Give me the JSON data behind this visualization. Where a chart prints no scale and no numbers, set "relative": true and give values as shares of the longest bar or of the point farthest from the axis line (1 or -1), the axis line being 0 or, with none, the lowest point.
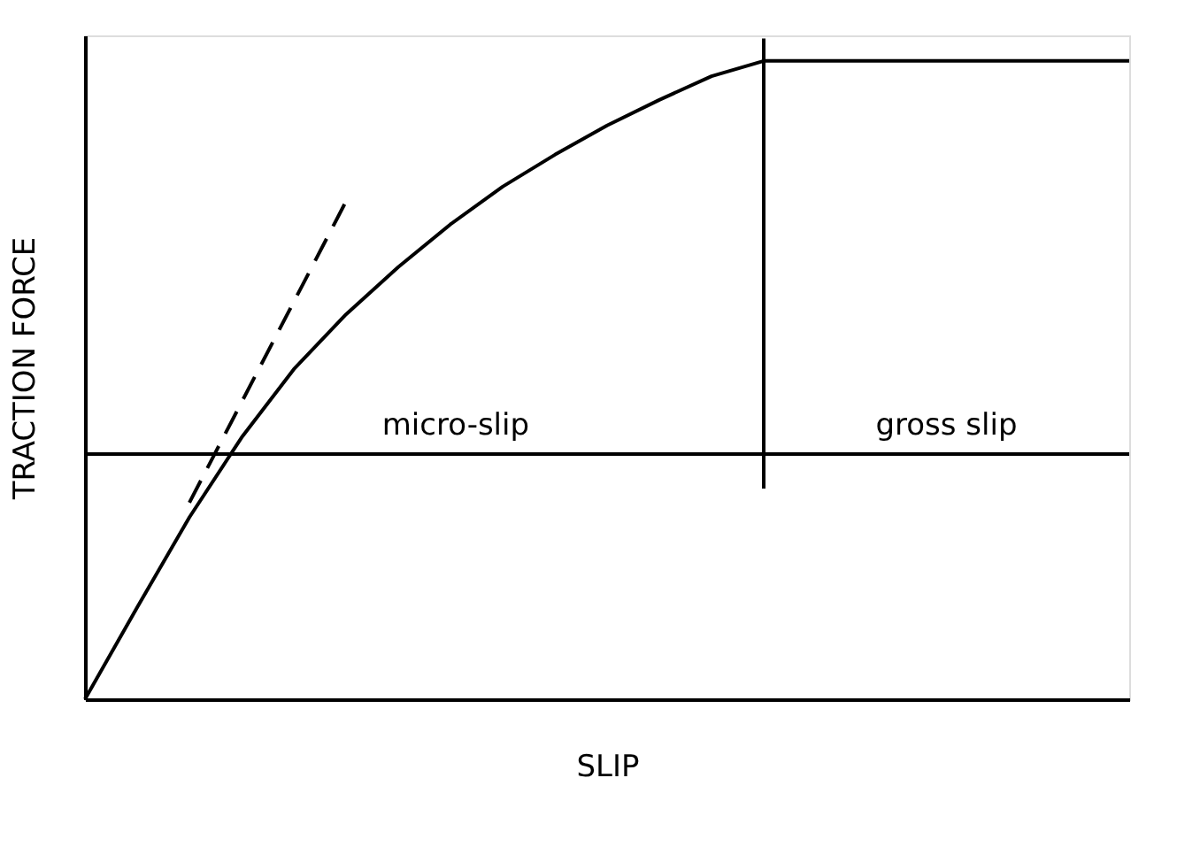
{
  "chart_data": {
    "type": "line",
    "relative": true,
    "xlabel": "SLIP",
    "ylabel": "TRACTION FORCE",
    "categories": [
      null,
      null,
      null,
      null,
      null,
      null,
      null,
      null,
      null,
      null,
      null,
      null,
      null,
      null,
      null,
      null,
      null,
      null,
      null,
      null,
      null
    ],
    "series": [
      {
        "color": "#000000",
        "line_style": "solid",
        "values": [
          0,
          0.144,
          0.285,
          0.41,
          0.517,
          0.603,
          0.677,
          0.744,
          0.803,
          0.853,
          0.899,
          0.939,
          0.976,
          1,
          1,
          1,
          1,
          1,
          1,
          1,
          1
        ]
      },
      {
        "color": "#000000",
        "line_style": "dashed",
        "values": [
          null,
          null,
          0.308,
          null,
          null,
          0.78,
          null,
          null,
          null,
          null,
          null,
          null,
          null,
          null,
          null,
          null,
          null,
          null,
          null,
          null,
          null
        ]
      }
    ],
    "ref_lines": [
      {
        "axis": "y",
        "value": 0.384,
        "color": "#000000"
      }
    ],
    "annotations": [
      "micro-slip",
      "gross slip"
    ]
  }
}
